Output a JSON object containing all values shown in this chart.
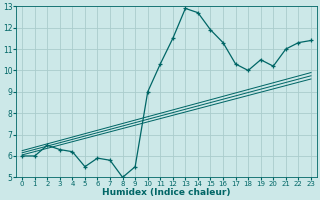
{
  "xlabel": "Humidex (Indice chaleur)",
  "bg_color": "#cce8e8",
  "grid_color": "#aacccc",
  "line_color": "#006666",
  "xlim": [
    -0.5,
    23.5
  ],
  "ylim": [
    5,
    13
  ],
  "x_ticks": [
    0,
    1,
    2,
    3,
    4,
    5,
    6,
    7,
    8,
    9,
    10,
    11,
    12,
    13,
    14,
    15,
    16,
    17,
    18,
    19,
    20,
    21,
    22,
    23
  ],
  "y_ticks": [
    5,
    6,
    7,
    8,
    9,
    10,
    11,
    12,
    13
  ],
  "main_line_x": [
    0,
    1,
    2,
    3,
    4,
    5,
    6,
    7,
    8,
    9,
    10,
    11,
    12,
    13,
    14,
    15,
    16,
    17,
    18,
    19,
    20,
    21,
    22,
    23
  ],
  "main_line_y": [
    6.0,
    6.0,
    6.5,
    6.3,
    6.2,
    5.5,
    5.9,
    5.8,
    5.0,
    5.5,
    9.0,
    10.3,
    11.5,
    12.9,
    12.7,
    11.9,
    11.3,
    10.3,
    10.0,
    10.5,
    10.2,
    11.0,
    11.3,
    11.4
  ],
  "reg_lines": [
    {
      "x": [
        0,
        23
      ],
      "y": [
        6.05,
        9.6
      ]
    },
    {
      "x": [
        0,
        23
      ],
      "y": [
        6.15,
        9.75
      ]
    },
    {
      "x": [
        0,
        23
      ],
      "y": [
        6.25,
        9.9
      ]
    }
  ],
  "xlabel_fontsize": 6.5,
  "xlabel_fontweight": "bold",
  "tick_fontsize": 5.0,
  "line_width": 0.9,
  "marker_size": 3.0
}
